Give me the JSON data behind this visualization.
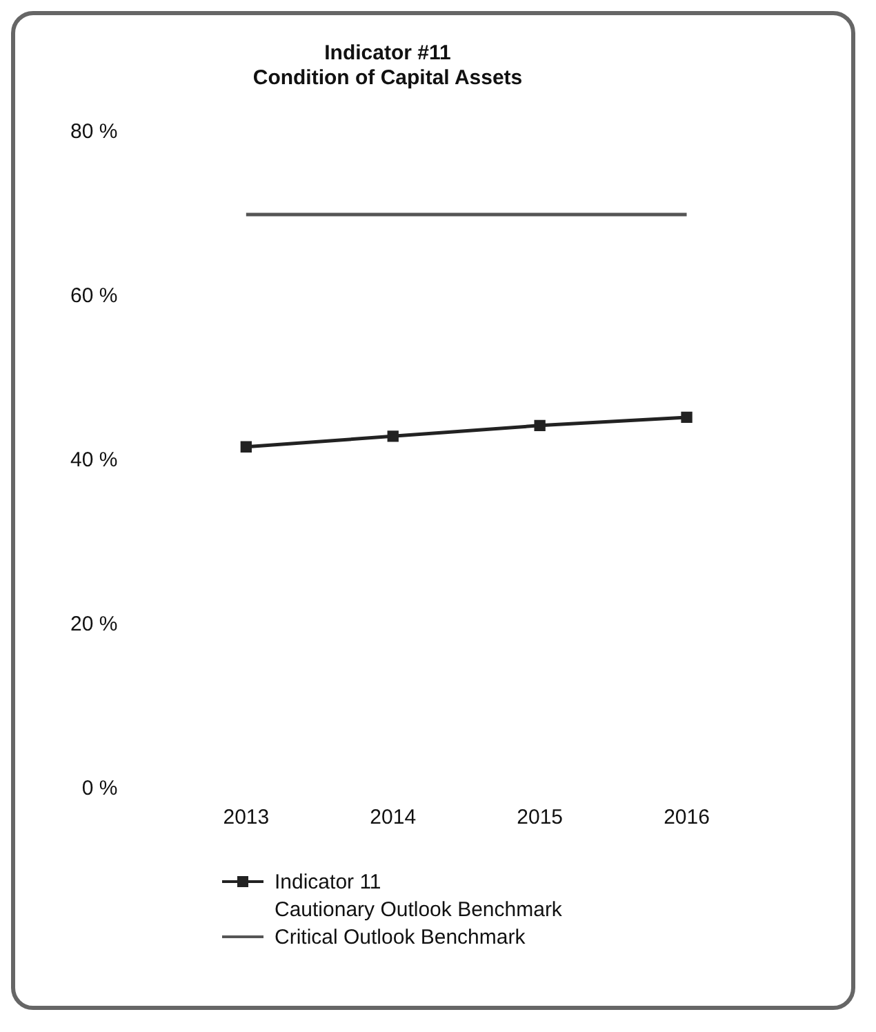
{
  "chart_data": {
    "type": "line",
    "title": "Indicator #11",
    "subtitle": "Condition of Capital Assets",
    "categories": [
      "2013",
      "2014",
      "2015",
      "2016"
    ],
    "series": [
      {
        "name": "Indicator 11",
        "color": "#222222",
        "values": [
          41.7,
          43.0,
          44.3,
          45.3
        ],
        "marker": "square"
      },
      {
        "name": "Cautionary Outlook Benchmark",
        "values": [
          null,
          null,
          null,
          null
        ],
        "marker": "none"
      },
      {
        "name": "Critical Outlook Benchmark",
        "color": "#555555",
        "values": [
          70,
          70,
          70,
          70
        ],
        "marker": "none"
      }
    ],
    "ylim": [
      0,
      80
    ],
    "yticks": [
      {
        "value": 0,
        "label": "0 %"
      },
      {
        "value": 20,
        "label": "20 %"
      },
      {
        "value": 40,
        "label": "40 %"
      },
      {
        "value": 60,
        "label": "60 %"
      },
      {
        "value": 80,
        "label": "80 %"
      }
    ],
    "grid": false,
    "legend": "bottom left"
  }
}
